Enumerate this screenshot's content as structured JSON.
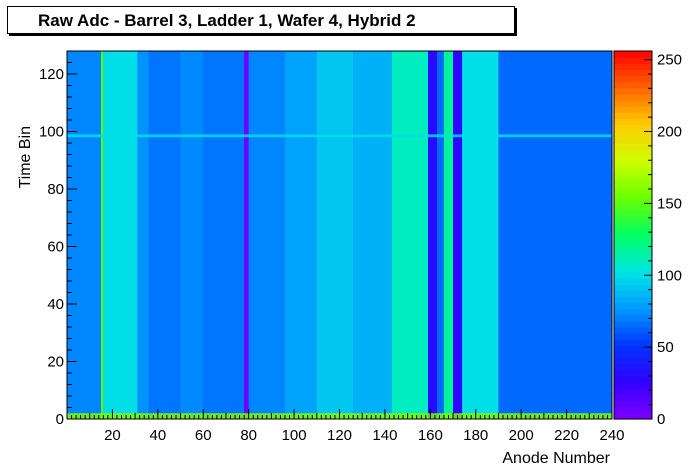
{
  "chart_data": {
    "type": "heatmap",
    "title": "Raw Adc - Barrel 3, Ladder 1, Wafer 4, Hybrid 2",
    "xlabel": "Anode Number",
    "ylabel": "Time Bin",
    "xlim": [
      0,
      240
    ],
    "ylim": [
      0,
      128
    ],
    "zlim": [
      0,
      256
    ],
    "x_ticks": [
      "20",
      "40",
      "60",
      "80",
      "100",
      "120",
      "140",
      "160",
      "180",
      "200",
      "220",
      "240"
    ],
    "y_ticks": [
      "0",
      "20",
      "40",
      "60",
      "80",
      "100",
      "120"
    ],
    "z_ticks": [
      "0",
      "50",
      "100",
      "150",
      "200",
      "250"
    ],
    "colormap": [
      "#7f00ff",
      "#3300ff",
      "#0033ff",
      "#0099ff",
      "#00e5e5",
      "#00ff66",
      "#66ff00",
      "#ccff00",
      "#ffcc00",
      "#ff6600",
      "#ff0000"
    ],
    "column_bands": [
      {
        "x": [
          0,
          15
        ],
        "adc": 72
      },
      {
        "x": [
          15,
          16
        ],
        "adc": 150
      },
      {
        "x": [
          16,
          31
        ],
        "adc": 100
      },
      {
        "x": [
          31,
          36
        ],
        "adc": 75
      },
      {
        "x": [
          36,
          50
        ],
        "adc": 68
      },
      {
        "x": [
          50,
          60
        ],
        "adc": 73
      },
      {
        "x": [
          60,
          78
        ],
        "adc": 68
      },
      {
        "x": [
          78,
          80
        ],
        "adc": 5
      },
      {
        "x": [
          80,
          96
        ],
        "adc": 72
      },
      {
        "x": [
          96,
          110
        ],
        "adc": 80
      },
      {
        "x": [
          110,
          126
        ],
        "adc": 92
      },
      {
        "x": [
          126,
          143
        ],
        "adc": 85
      },
      {
        "x": [
          143,
          159
        ],
        "adc": 110
      },
      {
        "x": [
          159,
          163
        ],
        "adc": 30
      },
      {
        "x": [
          163,
          166
        ],
        "adc": 65
      },
      {
        "x": [
          166,
          170
        ],
        "adc": 118
      },
      {
        "x": [
          170,
          174
        ],
        "adc": 28
      },
      {
        "x": [
          174,
          190
        ],
        "adc": 100
      },
      {
        "x": [
          190,
          240
        ],
        "adc": 65
      }
    ],
    "row_features": [
      {
        "y": [
          0,
          2
        ],
        "adc": 160
      },
      {
        "y": [
          98,
          99
        ],
        "adc": 100
      }
    ]
  }
}
